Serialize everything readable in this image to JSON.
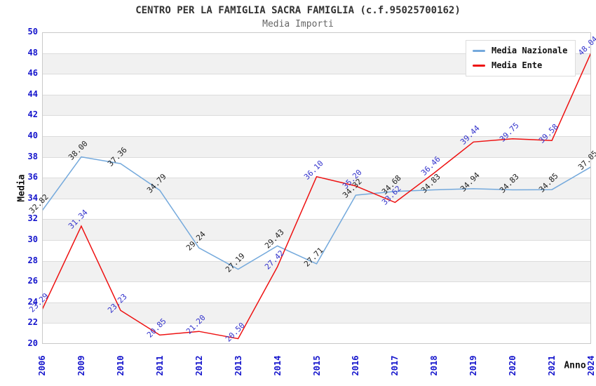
{
  "title": "CENTRO PER LA FAMIGLIA SACRA FAMIGLIA (c.f.95025700162)",
  "subtitle": "Media Importi",
  "colors": {
    "title": "#333333",
    "subtitle": "#666666",
    "axis_ticks": "#1414cc",
    "axis_titles": "#111111",
    "grid_band": "#f1f1f1",
    "grid_line": "#dcdcdc",
    "plot_border": "#c9c9c9"
  },
  "chart_data": {
    "type": "line",
    "title": "CENTRO PER LA FAMIGLIA SACRA FAMIGLIA (c.f.95025700162)",
    "subtitle": "Media Importi",
    "xlabel": "Anno",
    "ylabel": "Media",
    "ylim": [
      20,
      50
    ],
    "ytick_step": 2,
    "grid": "horizontal-bands",
    "legend_position": "top-right",
    "categories": [
      "2006",
      "2009",
      "2010",
      "2011",
      "2012",
      "2013",
      "2014",
      "2015",
      "2016",
      "2017",
      "2018",
      "2019",
      "2020",
      "2021",
      "2024"
    ],
    "series": [
      {
        "name": "Media Nazionale",
        "color": "#74a9dc",
        "label_color": "#222222",
        "values": [
          32.82,
          38.0,
          37.36,
          34.79,
          29.24,
          27.19,
          29.43,
          27.71,
          34.32,
          34.68,
          34.83,
          34.94,
          34.83,
          34.85,
          37.05
        ]
      },
      {
        "name": "Media Ente",
        "color": "#ee1111",
        "label_color": "#3333cc",
        "values": [
          23.29,
          31.34,
          23.23,
          20.85,
          21.2,
          20.5,
          27.42,
          36.1,
          35.2,
          33.62,
          36.46,
          39.44,
          39.75,
          39.58,
          48.04
        ]
      }
    ]
  }
}
